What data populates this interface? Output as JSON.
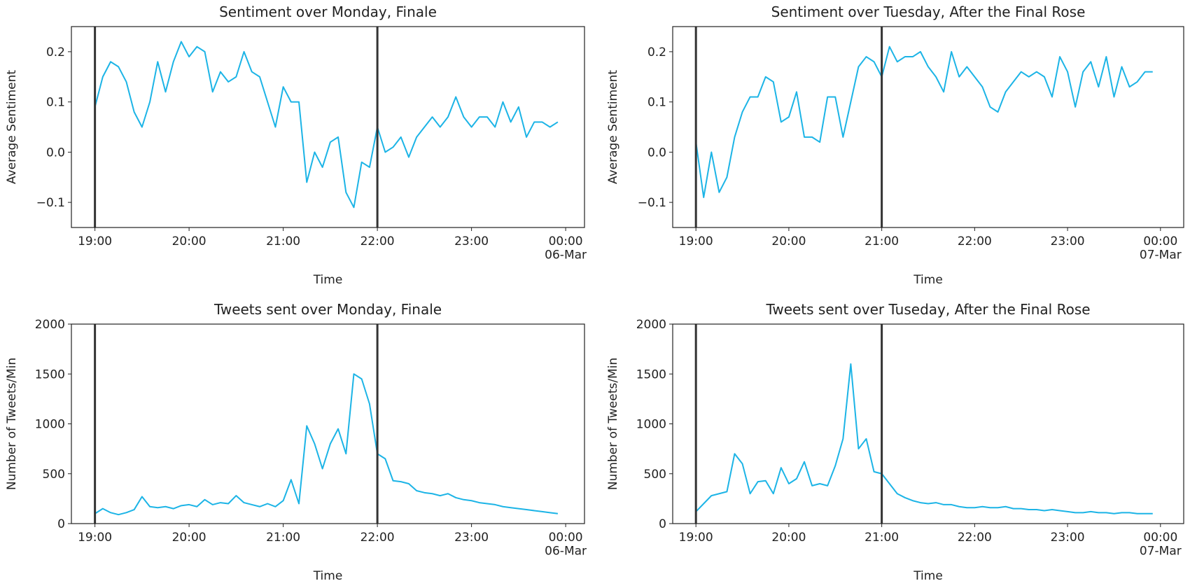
{
  "chart_data": [
    {
      "type": "line",
      "title": "Sentiment over Monday, Finale",
      "xlabel": "Time",
      "ylabel": "Average Sentiment",
      "xlim": [
        "18:45",
        "00:12"
      ],
      "ylim": [
        -0.15,
        0.25
      ],
      "xticks": [
        "19:00",
        "20:00",
        "21:00",
        "22:00",
        "23:00",
        {
          "value": "00:00",
          "label": "00:00\n06-Mar"
        }
      ],
      "yticks": [
        {
          "value": -0.1,
          "label": "−0.1"
        },
        {
          "value": 0,
          "label": "0.0"
        },
        0.1,
        0.2
      ],
      "vlines": [
        "19:00",
        "22:00"
      ],
      "vline_color": "#333333",
      "x": [
        "19:00",
        "19:05",
        "19:10",
        "19:15",
        "19:20",
        "19:25",
        "19:30",
        "19:35",
        "19:40",
        "19:45",
        "19:50",
        "19:55",
        "20:00",
        "20:05",
        "20:10",
        "20:15",
        "20:20",
        "20:25",
        "20:30",
        "20:35",
        "20:40",
        "20:45",
        "20:50",
        "20:55",
        "21:00",
        "21:05",
        "21:10",
        "21:15",
        "21:20",
        "21:25",
        "21:30",
        "21:35",
        "21:40",
        "21:45",
        "21:50",
        "21:55",
        "22:00",
        "22:05",
        "22:10",
        "22:15",
        "22:20",
        "22:25",
        "22:30",
        "22:35",
        "22:40",
        "22:45",
        "22:50",
        "22:55",
        "23:00",
        "23:05",
        "23:10",
        "23:15",
        "23:20",
        "23:25",
        "23:30",
        "23:35",
        "23:40",
        "23:45",
        "23:50",
        "23:55"
      ],
      "series": [
        {
          "color": "#1cb4e6",
          "values": [
            0.09,
            0.15,
            0.18,
            0.17,
            0.14,
            0.08,
            0.05,
            0.1,
            0.18,
            0.12,
            0.18,
            0.22,
            0.19,
            0.21,
            0.2,
            0.12,
            0.16,
            0.14,
            0.15,
            0.2,
            0.16,
            0.15,
            0.1,
            0.05,
            0.13,
            0.1,
            0.1,
            -0.06,
            0.0,
            -0.03,
            0.02,
            0.03,
            -0.08,
            -0.11,
            -0.02,
            -0.03,
            0.05,
            0.0,
            0.01,
            0.03,
            -0.01,
            0.03,
            0.05,
            0.07,
            0.05,
            0.07,
            0.11,
            0.07,
            0.05,
            0.07,
            0.07,
            0.05,
            0.1,
            0.06,
            0.09,
            0.03,
            0.06,
            0.06,
            0.05,
            0.06
          ]
        }
      ]
    },
    {
      "type": "line",
      "title": "Sentiment over Tuesday, After the Final Rose",
      "xlabel": "Time",
      "ylabel": "Average Sentiment",
      "xlim": [
        "18:45",
        "00:15"
      ],
      "ylim": [
        -0.15,
        0.25
      ],
      "xticks": [
        "19:00",
        "20:00",
        "21:00",
        "22:00",
        "23:00",
        {
          "value": "00:00",
          "label": "00:00\n07-Mar"
        }
      ],
      "yticks": [
        {
          "value": -0.1,
          "label": "−0.1"
        },
        {
          "value": 0,
          "label": "0.0"
        },
        0.1,
        0.2
      ],
      "vlines": [
        "19:00",
        "21:00"
      ],
      "vline_color": "#333333",
      "x": [
        "19:00",
        "19:05",
        "19:10",
        "19:15",
        "19:20",
        "19:25",
        "19:30",
        "19:35",
        "19:40",
        "19:45",
        "19:50",
        "19:55",
        "20:00",
        "20:05",
        "20:10",
        "20:15",
        "20:20",
        "20:25",
        "20:30",
        "20:35",
        "20:40",
        "20:45",
        "20:50",
        "20:55",
        "21:00",
        "21:05",
        "21:10",
        "21:15",
        "21:20",
        "21:25",
        "21:30",
        "21:35",
        "21:40",
        "21:45",
        "21:50",
        "21:55",
        "22:00",
        "22:05",
        "22:10",
        "22:15",
        "22:20",
        "22:25",
        "22:30",
        "22:35",
        "22:40",
        "22:45",
        "22:50",
        "22:55",
        "23:00",
        "23:05",
        "23:10",
        "23:15",
        "23:20",
        "23:25",
        "23:30",
        "23:35",
        "23:40",
        "23:45",
        "23:50",
        "23:55"
      ],
      "series": [
        {
          "color": "#1cb4e6",
          "values": [
            0.02,
            -0.09,
            0.0,
            -0.08,
            -0.05,
            0.03,
            0.08,
            0.11,
            0.11,
            0.15,
            0.14,
            0.06,
            0.07,
            0.12,
            0.03,
            0.03,
            0.02,
            0.11,
            0.11,
            0.03,
            0.1,
            0.17,
            0.19,
            0.18,
            0.15,
            0.21,
            0.18,
            0.19,
            0.19,
            0.2,
            0.17,
            0.15,
            0.12,
            0.2,
            0.15,
            0.17,
            0.15,
            0.13,
            0.09,
            0.08,
            0.12,
            0.14,
            0.16,
            0.15,
            0.16,
            0.15,
            0.11,
            0.19,
            0.16,
            0.09,
            0.16,
            0.18,
            0.13,
            0.19,
            0.11,
            0.17,
            0.13,
            0.14,
            0.16,
            0.16
          ]
        }
      ]
    },
    {
      "type": "line",
      "title": "Tweets sent over Monday, Finale",
      "xlabel": "Time",
      "ylabel": "Number of Tweets/Min",
      "xlim": [
        "18:45",
        "00:12"
      ],
      "ylim": [
        0,
        2000
      ],
      "xticks": [
        "19:00",
        "20:00",
        "21:00",
        "22:00",
        "23:00",
        {
          "value": "00:00",
          "label": "00:00\n06-Mar"
        }
      ],
      "yticks": [
        0,
        500,
        1000,
        1500,
        2000
      ],
      "vlines": [
        "19:00",
        "22:00"
      ],
      "vline_color": "#333333",
      "x": [
        "19:00",
        "19:05",
        "19:10",
        "19:15",
        "19:20",
        "19:25",
        "19:30",
        "19:35",
        "19:40",
        "19:45",
        "19:50",
        "19:55",
        "20:00",
        "20:05",
        "20:10",
        "20:15",
        "20:20",
        "20:25",
        "20:30",
        "20:35",
        "20:40",
        "20:45",
        "20:50",
        "20:55",
        "21:00",
        "21:05",
        "21:10",
        "21:15",
        "21:20",
        "21:25",
        "21:30",
        "21:35",
        "21:40",
        "21:45",
        "21:50",
        "21:55",
        "22:00",
        "22:05",
        "22:10",
        "22:15",
        "22:20",
        "22:25",
        "22:30",
        "22:35",
        "22:40",
        "22:45",
        "22:50",
        "22:55",
        "23:00",
        "23:05",
        "23:10",
        "23:15",
        "23:20",
        "23:25",
        "23:30",
        "23:35",
        "23:40",
        "23:45",
        "23:50",
        "23:55"
      ],
      "series": [
        {
          "color": "#1cb4e6",
          "values": [
            100,
            150,
            110,
            90,
            110,
            140,
            270,
            170,
            160,
            170,
            150,
            180,
            190,
            170,
            240,
            190,
            210,
            200,
            280,
            210,
            190,
            170,
            200,
            170,
            230,
            440,
            200,
            980,
            800,
            550,
            800,
            950,
            700,
            1500,
            1450,
            1200,
            700,
            650,
            430,
            420,
            400,
            330,
            310,
            300,
            280,
            300,
            260,
            240,
            230,
            210,
            200,
            190,
            170,
            160,
            150,
            140,
            130,
            120,
            110,
            100
          ]
        }
      ]
    },
    {
      "type": "line",
      "title": "Tweets sent over Tuseday, After the Final Rose",
      "xlabel": "Time",
      "ylabel": "Number of Tweets/Min",
      "xlim": [
        "18:45",
        "00:15"
      ],
      "ylim": [
        0,
        2000
      ],
      "xticks": [
        "19:00",
        "20:00",
        "21:00",
        "22:00",
        "23:00",
        {
          "value": "00:00",
          "label": "00:00\n07-Mar"
        }
      ],
      "yticks": [
        0,
        500,
        1000,
        1500,
        2000
      ],
      "vlines": [
        "19:00",
        "21:00"
      ],
      "vline_color": "#333333",
      "x": [
        "19:00",
        "19:05",
        "19:10",
        "19:15",
        "19:20",
        "19:25",
        "19:30",
        "19:35",
        "19:40",
        "19:45",
        "19:50",
        "19:55",
        "20:00",
        "20:05",
        "20:10",
        "20:15",
        "20:20",
        "20:25",
        "20:30",
        "20:35",
        "20:40",
        "20:45",
        "20:50",
        "20:55",
        "21:00",
        "21:05",
        "21:10",
        "21:15",
        "21:20",
        "21:25",
        "21:30",
        "21:35",
        "21:40",
        "21:45",
        "21:50",
        "21:55",
        "22:00",
        "22:05",
        "22:10",
        "22:15",
        "22:20",
        "22:25",
        "22:30",
        "22:35",
        "22:40",
        "22:45",
        "22:50",
        "22:55",
        "23:00",
        "23:05",
        "23:10",
        "23:15",
        "23:20",
        "23:25",
        "23:30",
        "23:35",
        "23:40",
        "23:45",
        "23:50",
        "23:55"
      ],
      "series": [
        {
          "color": "#1cb4e6",
          "values": [
            120,
            200,
            280,
            300,
            320,
            700,
            600,
            300,
            420,
            430,
            300,
            560,
            400,
            450,
            620,
            380,
            400,
            380,
            580,
            850,
            1600,
            750,
            850,
            520,
            500,
            400,
            300,
            260,
            230,
            210,
            200,
            210,
            190,
            190,
            170,
            160,
            160,
            170,
            160,
            160,
            170,
            150,
            150,
            140,
            140,
            130,
            140,
            130,
            120,
            110,
            110,
            120,
            110,
            110,
            100,
            110,
            110,
            100,
            100,
            100
          ]
        }
      ]
    }
  ]
}
